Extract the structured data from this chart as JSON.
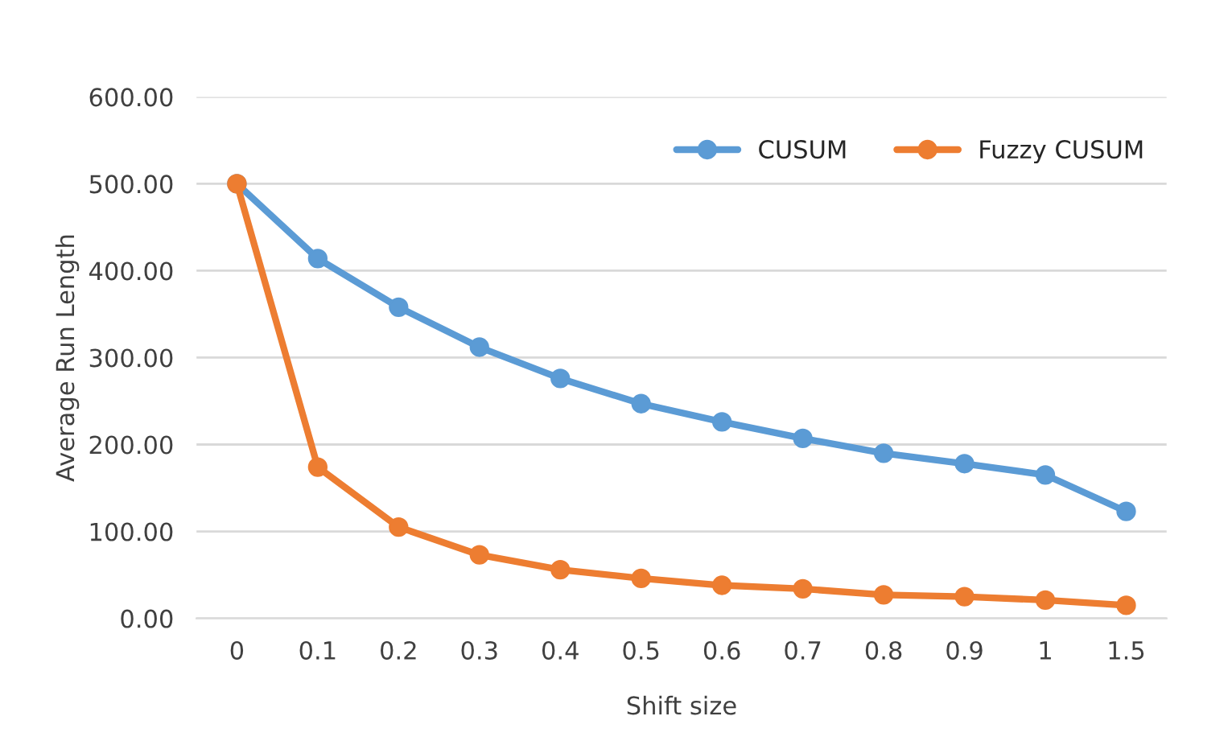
{
  "chart_data": {
    "type": "line",
    "xlabel": "Shift size",
    "ylabel": "Average Run Length",
    "categories": [
      "0",
      "0.1",
      "0.2",
      "0.3",
      "0.4",
      "0.5",
      "0.6",
      "0.7",
      "0.8",
      "0.9",
      "1",
      "1.5"
    ],
    "series": [
      {
        "name": "CUSUM",
        "color": "#5b9bd5",
        "values": [
          500,
          414,
          358,
          312,
          276,
          247,
          226,
          207,
          190,
          178,
          165,
          123
        ]
      },
      {
        "name": "Fuzzy CUSUM",
        "color": "#ed7d31",
        "values": [
          500,
          174,
          105,
          73,
          56,
          46,
          38,
          34,
          27,
          25,
          21,
          15
        ]
      }
    ],
    "ylim": [
      0,
      600
    ],
    "yticks": [
      {
        "value": 0,
        "label": "0.00"
      },
      {
        "value": 100,
        "label": "100.00"
      },
      {
        "value": 200,
        "label": "200.00"
      },
      {
        "value": 300,
        "label": "300.00"
      },
      {
        "value": 400,
        "label": "400.00"
      },
      {
        "value": 500,
        "label": "500.00"
      },
      {
        "value": 600,
        "label": "600.00"
      }
    ],
    "grid": "y",
    "legend": "top right",
    "marker": "circle",
    "line_style": "solid"
  }
}
